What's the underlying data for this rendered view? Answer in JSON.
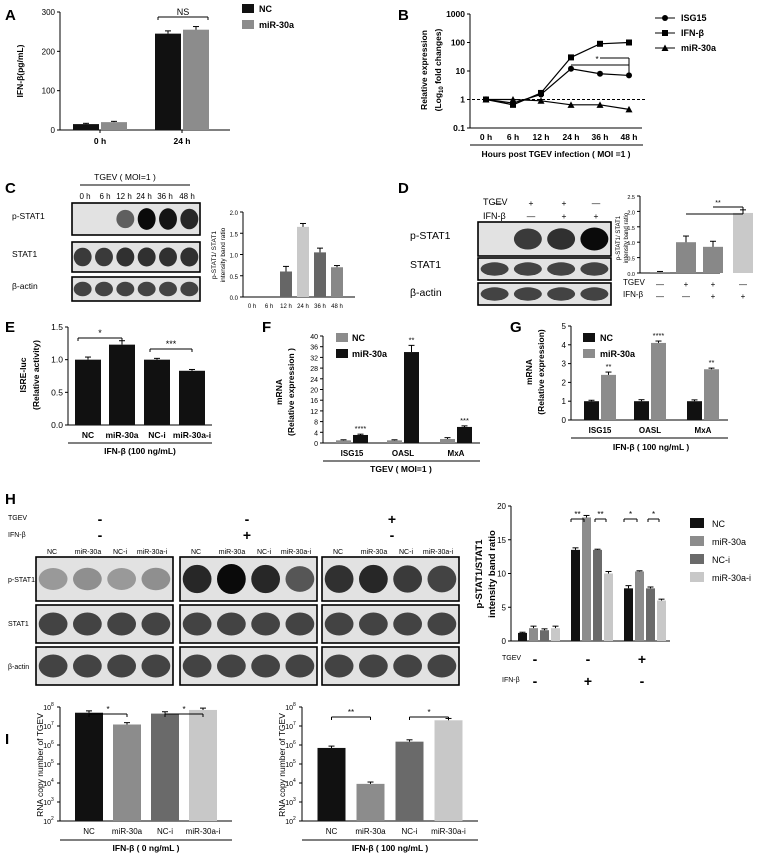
{
  "panels": {
    "A": "A",
    "B": "B",
    "C": "C",
    "D": "D",
    "E": "E",
    "F": "F",
    "G": "G",
    "H": "H",
    "I": "I"
  },
  "colors": {
    "black": "#111111",
    "gray": "#8c8c8c",
    "darkgray": "#6a6a6a",
    "lightgray": "#c8c8c8"
  },
  "panel_c": {
    "header": "TGEV ( MOI=1 )",
    "times": [
      "0 h",
      "6 h",
      "12 h",
      "24 h",
      "36 h",
      "48 h"
    ],
    "row_labels": [
      "p-STAT1",
      "STAT1",
      "β-actin"
    ]
  },
  "panel_d": {
    "row_labels": [
      "p-STAT1",
      "STAT1",
      "β-actin"
    ],
    "tgev_label": "TGEV",
    "ifn_label": "IFN-β",
    "tgev_signs": [
      "—",
      "+",
      "+",
      "—"
    ],
    "ifn_signs": [
      "—",
      "—",
      "+",
      "+"
    ],
    "chart_tgev_signs": [
      "—",
      "+",
      "+",
      "—"
    ],
    "chart_ifn_signs": [
      "—",
      "—",
      "+",
      "+"
    ]
  },
  "panel_h": {
    "tgev_label": "TGEV",
    "ifn_label": "IFN-β",
    "group_tgev": [
      "-",
      "-",
      "+"
    ],
    "group_ifn": [
      "-",
      "+",
      "-"
    ],
    "lanes": [
      "NC",
      "miR-30a",
      "NC-i",
      "miR-30a-i"
    ],
    "row_labels": [
      "p-STAT1",
      "STAT1",
      "β-actin"
    ],
    "chart_tgev": [
      "-",
      "-",
      "+"
    ],
    "chart_ifn": [
      "-",
      "+",
      "-"
    ]
  },
  "chart_data": [
    {
      "panel": "A",
      "type": "bar",
      "categories": [
        "0 h",
        "24 h"
      ],
      "series": [
        {
          "name": "NC",
          "values": [
            15,
            245
          ],
          "errors": [
            2,
            7
          ]
        },
        {
          "name": "miR-30a",
          "values": [
            20,
            255
          ],
          "errors": [
            2,
            8
          ]
        }
      ],
      "ylabel": "IFN-β(pg/mL)",
      "ylim": [
        0,
        300
      ],
      "yticks": [
        "0",
        "100",
        "200",
        "300"
      ],
      "annotations": [
        "NS"
      ]
    },
    {
      "panel": "B",
      "type": "line",
      "yscale": "log",
      "x": [
        "0 h",
        "6 h",
        "12 h",
        "24 h",
        "36 h",
        "48 h"
      ],
      "series": [
        {
          "name": "ISG15",
          "marker": "circle",
          "values": [
            1,
            0.75,
            1.5,
            12,
            8,
            7
          ]
        },
        {
          "name": "IFN-β",
          "marker": "square",
          "values": [
            1,
            0.65,
            1.7,
            30,
            90,
            100
          ]
        },
        {
          "name": "miR-30a",
          "marker": "triangle",
          "values": [
            1,
            1,
            0.9,
            0.65,
            0.65,
            0.45
          ]
        }
      ],
      "ylabel": "Relative  expression",
      "ylabel2": "(Log",
      "ylabel2_sub": "10",
      "ylabel2_tail": " fold changes)",
      "xlabel": "Hours post TGEV infection ( MOI =1 )",
      "yticks": [
        "0.1",
        "1",
        "10",
        "100",
        "1000"
      ],
      "annotations": [
        "*"
      ]
    },
    {
      "panel": "C",
      "type": "bar",
      "categories": [
        "0 h",
        "6 h",
        "12 h",
        "24 h",
        "36 h",
        "48 h"
      ],
      "values": [
        0,
        0,
        0.6,
        1.65,
        1.05,
        0.7
      ],
      "errors": [
        0,
        0,
        0.12,
        0.08,
        0.1,
        0.04
      ],
      "ylabel": "p-STAT1/ STAT1",
      "ylabel2": "intensity band ratio",
      "ylim": [
        0,
        2.0
      ],
      "yticks": [
        "0.0",
        "0.5",
        "1.0",
        "1.5",
        "2.0"
      ]
    },
    {
      "panel": "D",
      "type": "bar",
      "values": [
        0.03,
        1.0,
        0.85,
        1.95
      ],
      "errors": [
        0.02,
        0.2,
        0.18,
        0.1
      ],
      "ylabel": "p-STAT1/ STAT1",
      "ylabel2": "intensity band ratio",
      "ylim": [
        0,
        2.5
      ],
      "yticks": [
        "0.0",
        "0.5",
        "1.0",
        "1.5",
        "2.0",
        "2.5"
      ],
      "annotations": [
        "**"
      ]
    },
    {
      "panel": "E",
      "type": "bar",
      "categories": [
        "NC",
        "miR-30a",
        "NC-i",
        "miR-30a-i"
      ],
      "values": [
        1.0,
        1.23,
        1.0,
        0.83
      ],
      "errors": [
        0.04,
        0.06,
        0.02,
        0.02
      ],
      "ylabel": "ISRE-luc",
      "ylabel2": "(Relative activity)",
      "xlabel": "IFN-β (100 ng/mL)",
      "ylim": [
        0,
        1.5
      ],
      "yticks": [
        "0.0",
        "0.5",
        "1.0",
        "1.5"
      ],
      "annotations": [
        "*",
        "***"
      ]
    },
    {
      "panel": "F",
      "type": "bar",
      "categories": [
        "ISG15",
        "OASL",
        "MxA"
      ],
      "series": [
        {
          "name": "NC",
          "values": [
            1,
            1,
            1.5
          ],
          "errors": [
            0.2,
            0.2,
            0.5
          ]
        },
        {
          "name": "miR-30a",
          "values": [
            3,
            34,
            6
          ],
          "errors": [
            0.3,
            2.5,
            0.4
          ]
        }
      ],
      "ylabel": "mRNA",
      "ylabel2": "(Relative expression )",
      "xlabel": "TGEV ( MOI=1 )",
      "ylim": [
        0,
        40
      ],
      "yticks": [
        "0",
        "4",
        "8",
        "12",
        "16",
        "20",
        "24",
        "28",
        "32",
        "36",
        "40"
      ],
      "annotations": [
        "****",
        "**",
        "***"
      ]
    },
    {
      "panel": "G",
      "type": "bar",
      "categories": [
        "ISG15",
        "OASL",
        "MxA"
      ],
      "series": [
        {
          "name": "NC",
          "values": [
            1,
            1,
            1
          ],
          "errors": [
            0.05,
            0.08,
            0.07
          ]
        },
        {
          "name": "miR-30a",
          "values": [
            2.4,
            4.1,
            2.7
          ],
          "errors": [
            0.15,
            0.1,
            0.06
          ]
        }
      ],
      "ylabel": "mRNA",
      "ylabel2": "(Relative expression)",
      "xlabel": "IFN-β ( 100 ng/mL )",
      "ylim": [
        0,
        5
      ],
      "yticks": [
        "0",
        "1",
        "2",
        "3",
        "4",
        "5"
      ],
      "annotations": [
        "**",
        "****",
        "**"
      ]
    },
    {
      "panel": "H",
      "type": "bar",
      "series": [
        {
          "name": "NC",
          "values": [
            1.2,
            13.5,
            7.8
          ],
          "errors": [
            0.1,
            0.3,
            0.4
          ]
        },
        {
          "name": "miR-30a",
          "values": [
            1.9,
            18.3,
            10.3
          ],
          "errors": [
            0.3,
            0.3,
            0.1
          ]
        },
        {
          "name": "NC-i",
          "values": [
            1.6,
            13.5,
            7.8
          ],
          "errors": [
            0.2,
            0.1,
            0.2
          ]
        },
        {
          "name": "miR-30a-i",
          "values": [
            1.9,
            10.0,
            6.0
          ],
          "errors": [
            0.3,
            0.3,
            0.2
          ]
        }
      ],
      "ylabel": "p-STAT1/STAT1",
      "ylabel2": "intensity band ratio",
      "ylim": [
        0,
        20
      ],
      "yticks": [
        "0",
        "5",
        "10",
        "15",
        "20"
      ],
      "annotations": [
        "**",
        "**",
        "*",
        "*"
      ]
    },
    {
      "panel": "I-left",
      "type": "bar",
      "yscale": "log",
      "categories": [
        "NC",
        "miR-30a",
        "NC-i",
        "miR-30a-i"
      ],
      "values": [
        50000000,
        12000000,
        45000000,
        70000000
      ],
      "ylabel": "RNA copy number of TGEV",
      "xlabel": "IFN-β ( 0 ng/mL )",
      "yticks": [
        "10",
        "10",
        "10",
        "10",
        "10",
        "10",
        "10"
      ],
      "ytick_exps": [
        "2",
        "3",
        "4",
        "5",
        "6",
        "7",
        "8"
      ],
      "annotations": [
        "*",
        "*"
      ]
    },
    {
      "panel": "I-right",
      "type": "bar",
      "yscale": "log",
      "categories": [
        "NC",
        "miR-30a",
        "NC-i",
        "miR-30a-i"
      ],
      "values": [
        700000,
        9000,
        1500000,
        20000000
      ],
      "ylabel": "RNA copy number of TGEV",
      "xlabel": "IFN-β ( 100 ng/mL )",
      "yticks": [
        "10",
        "10",
        "10",
        "10",
        "10",
        "10",
        "10"
      ],
      "ytick_exps": [
        "2",
        "3",
        "4",
        "5",
        "6",
        "7",
        "8"
      ],
      "annotations": [
        "**",
        "*"
      ]
    }
  ]
}
